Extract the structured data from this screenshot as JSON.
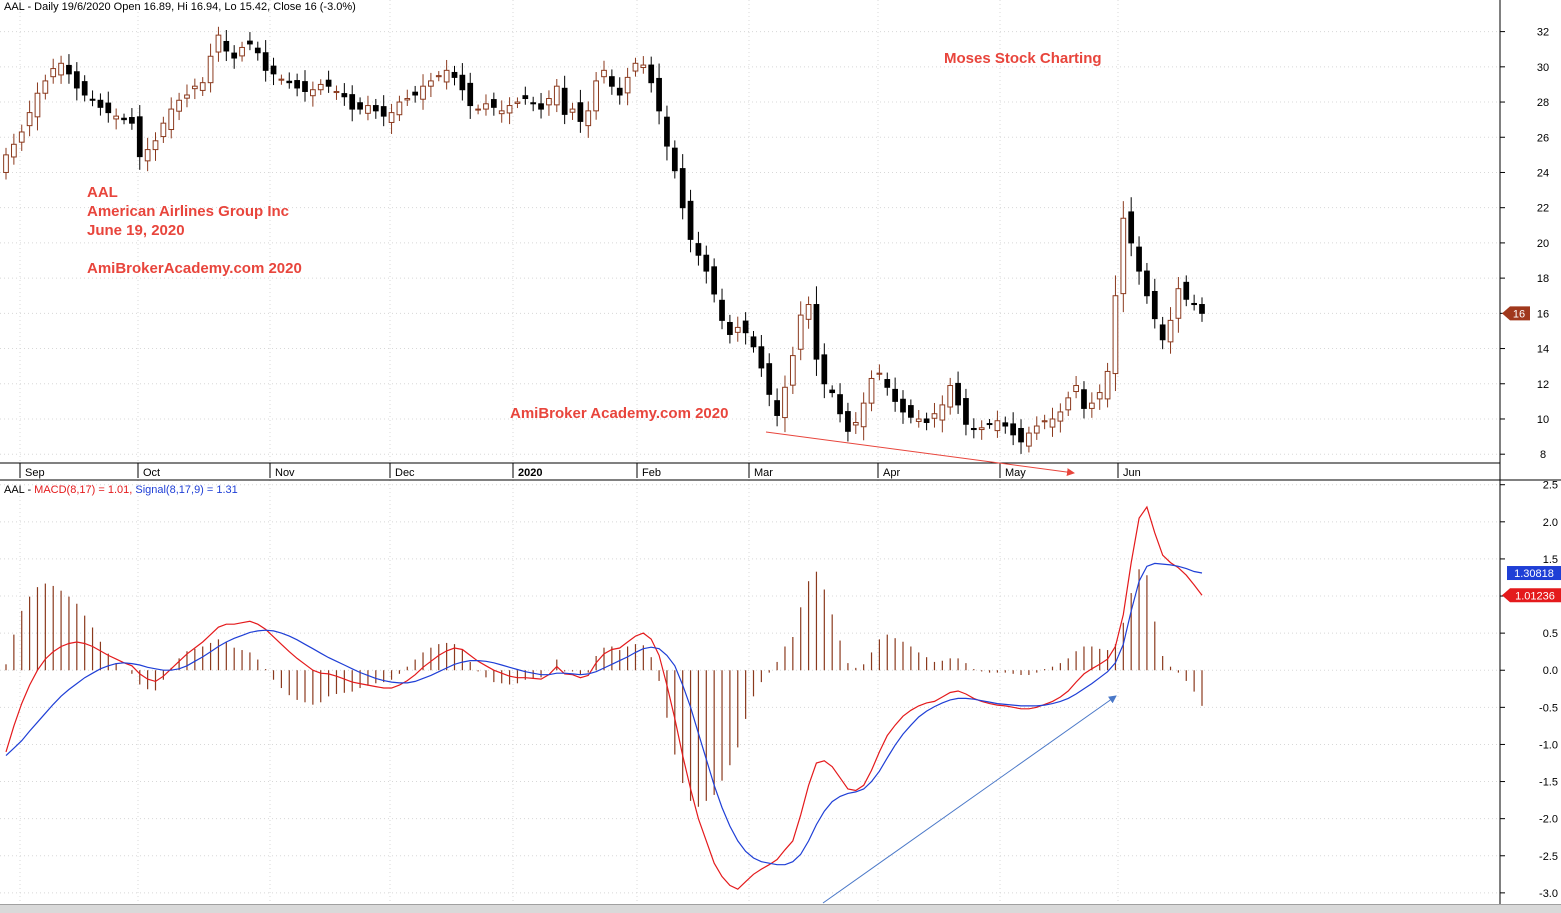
{
  "header_price": {
    "symbol": "AAL",
    "text": "AAL - Daily 19/6/2020 Open 16.89, Hi 16.94, Lo 15.42, Close 16 (-3.0%)"
  },
  "header_macd": {
    "prefix": "AAL - ",
    "macd": "MACD(8,17) = 1.01,",
    "signal": "Signal(8,17,9) = 1.31",
    "macd_color": "#e41a1c",
    "signal_color": "#1f3fd6"
  },
  "annotations": {
    "symbol": "AAL",
    "company": "American Airlines Group Inc",
    "date": "June 19, 2020",
    "site": "AmiBrokerAcademy.com  2020",
    "brand": "Moses Stock Charting",
    "watermark": "AmiBroker Academy.com  2020"
  },
  "chart_data": [
    {
      "type": "candlestick",
      "title": "AAL - Daily 19/6/2020 Open 16.89, Hi 16.94, Lo 15.42, Close 16 (-3.0%)",
      "x_tick_labels": [
        "Sep",
        "Oct",
        "Nov",
        "Dec",
        "2020",
        "Feb",
        "Mar",
        "Apr",
        "May",
        "Jun"
      ],
      "ylim": [
        7.5,
        33
      ],
      "y_ticks": [
        8,
        10,
        12,
        14,
        16,
        18,
        20,
        22,
        24,
        26,
        28,
        30,
        32
      ],
      "last_close_label": "16",
      "last_close": 16,
      "up_color": "#8b3a1e",
      "down_color": "#000000",
      "close_series": [
        25.0,
        25.6,
        26.3,
        27.4,
        28.5,
        29.2,
        29.9,
        30.2,
        29.6,
        28.8,
        28.4,
        28.1,
        27.7,
        27.4,
        27.2,
        27.0,
        26.8,
        24.9,
        25.3,
        25.8,
        26.8,
        27.6,
        28.1,
        28.4,
        28.9,
        29.1,
        30.6,
        31.8,
        30.9,
        30.5,
        31.1,
        31.3,
        30.8,
        29.8,
        29.6,
        29.3,
        29.1,
        28.8,
        28.6,
        28.7,
        29.0,
        28.9,
        28.6,
        28.3,
        27.6,
        27.6,
        27.8,
        27.5,
        27.2,
        27.4,
        28.0,
        28.2,
        28.4,
        28.9,
        29.2,
        29.5,
        29.8,
        29.4,
        28.7,
        27.8,
        27.6,
        27.9,
        27.7,
        27.5,
        27.8,
        28.0,
        28.2,
        27.9,
        27.6,
        28.2,
        28.9,
        27.3,
        27.6,
        26.9,
        27.5,
        29.2,
        29.8,
        28.9,
        28.4,
        29.4,
        30.2,
        30.1,
        29.1,
        27.5,
        25.5,
        24.1,
        22.0,
        20.2,
        19.3,
        18.4,
        17.1,
        15.6,
        14.8,
        15.2,
        14.9,
        14.1,
        12.9,
        11.4,
        10.2,
        11.8,
        13.6,
        15.9,
        16.5,
        13.4,
        12.0,
        11.5,
        10.3,
        9.3,
        9.8,
        10.9,
        12.3,
        12.6,
        11.8,
        11.0,
        10.4,
        10.1,
        10.0,
        9.8,
        10.3,
        10.8,
        11.9,
        10.8,
        9.7,
        9.4,
        9.5,
        9.7,
        9.9,
        9.6,
        9.1,
        8.7,
        9.2,
        9.6,
        9.9,
        10.0,
        10.4,
        11.2,
        11.9,
        10.6,
        10.9,
        11.5,
        12.7,
        17.0,
        21.4,
        20.0,
        18.4,
        17.0,
        15.7,
        14.5,
        15.6,
        17.4,
        16.8,
        16.5,
        16.0
      ]
    },
    {
      "type": "line",
      "title": "AAL - MACD(8,17) = 1.01, Signal(8,17,9) = 1.31",
      "ylim": [
        -3.15,
        2.55
      ],
      "y_ticks": [
        -3.0,
        -2.5,
        -2.0,
        -1.5,
        -1.0,
        -0.5,
        0.0,
        0.5,
        1.0,
        1.5,
        2.0,
        2.5
      ],
      "series": [
        {
          "name": "MACD(8,17)",
          "color": "#e41a1c",
          "last_label": "1.01236",
          "values": [
            -1.1,
            -0.75,
            -0.45,
            -0.2,
            0.0,
            0.15,
            0.25,
            0.32,
            0.36,
            0.38,
            0.36,
            0.32,
            0.26,
            0.2,
            0.15,
            0.1,
            0.06,
            -0.05,
            -0.12,
            -0.15,
            -0.08,
            0.02,
            0.12,
            0.22,
            0.3,
            0.38,
            0.48,
            0.58,
            0.62,
            0.62,
            0.64,
            0.66,
            0.62,
            0.55,
            0.45,
            0.35,
            0.25,
            0.16,
            0.08,
            0.0,
            -0.04,
            -0.05,
            -0.08,
            -0.12,
            -0.16,
            -0.18,
            -0.2,
            -0.22,
            -0.24,
            -0.24,
            -0.2,
            -0.14,
            -0.06,
            0.04,
            0.12,
            0.2,
            0.26,
            0.3,
            0.28,
            0.2,
            0.12,
            0.06,
            0.0,
            -0.04,
            -0.08,
            -0.1,
            -0.1,
            -0.11,
            -0.12,
            -0.06,
            0.05,
            -0.05,
            -0.06,
            -0.1,
            -0.07,
            0.1,
            0.22,
            0.28,
            0.3,
            0.38,
            0.46,
            0.5,
            0.42,
            0.2,
            -0.2,
            -0.65,
            -1.15,
            -1.6,
            -2.0,
            -2.3,
            -2.6,
            -2.78,
            -2.9,
            -2.95,
            -2.85,
            -2.75,
            -2.68,
            -2.62,
            -2.55,
            -2.42,
            -2.3,
            -1.95,
            -1.55,
            -1.25,
            -1.22,
            -1.3,
            -1.45,
            -1.6,
            -1.62,
            -1.55,
            -1.35,
            -1.1,
            -0.88,
            -0.74,
            -0.62,
            -0.54,
            -0.48,
            -0.44,
            -0.42,
            -0.36,
            -0.3,
            -0.28,
            -0.32,
            -0.38,
            -0.42,
            -0.45,
            -0.47,
            -0.48,
            -0.5,
            -0.52,
            -0.52,
            -0.5,
            -0.46,
            -0.42,
            -0.36,
            -0.28,
            -0.16,
            -0.05,
            0.02,
            0.08,
            0.15,
            0.32,
            0.75,
            1.45,
            2.05,
            2.2,
            1.85,
            1.55,
            1.45,
            1.38,
            1.28,
            1.15,
            1.01
          ]
        },
        {
          "name": "Signal(8,17,9)",
          "color": "#1f3fd6",
          "last_label": "1.30818",
          "values": [
            -1.15,
            -1.05,
            -0.95,
            -0.82,
            -0.7,
            -0.58,
            -0.46,
            -0.35,
            -0.26,
            -0.18,
            -0.1,
            -0.04,
            0.02,
            0.06,
            0.09,
            0.1,
            0.09,
            0.07,
            0.04,
            0.02,
            0.0,
            0.0,
            0.02,
            0.06,
            0.12,
            0.18,
            0.25,
            0.32,
            0.38,
            0.43,
            0.47,
            0.51,
            0.53,
            0.54,
            0.53,
            0.5,
            0.46,
            0.41,
            0.35,
            0.29,
            0.23,
            0.17,
            0.12,
            0.07,
            0.02,
            -0.03,
            -0.07,
            -0.11,
            -0.14,
            -0.16,
            -0.17,
            -0.17,
            -0.15,
            -0.11,
            -0.07,
            -0.02,
            0.03,
            0.08,
            0.11,
            0.13,
            0.13,
            0.12,
            0.1,
            0.07,
            0.04,
            0.01,
            -0.02,
            -0.04,
            -0.06,
            -0.06,
            -0.04,
            -0.04,
            -0.05,
            -0.06,
            -0.05,
            -0.02,
            0.03,
            0.08,
            0.13,
            0.18,
            0.24,
            0.29,
            0.31,
            0.29,
            0.2,
            0.06,
            -0.2,
            -0.5,
            -0.85,
            -1.2,
            -1.55,
            -1.85,
            -2.1,
            -2.3,
            -2.44,
            -2.53,
            -2.58,
            -2.6,
            -2.62,
            -2.62,
            -2.58,
            -2.48,
            -2.3,
            -2.08,
            -1.9,
            -1.77,
            -1.7,
            -1.66,
            -1.64,
            -1.6,
            -1.5,
            -1.36,
            -1.18,
            -1.01,
            -0.86,
            -0.74,
            -0.63,
            -0.55,
            -0.49,
            -0.44,
            -0.4,
            -0.38,
            -0.38,
            -0.39,
            -0.41,
            -0.43,
            -0.45,
            -0.46,
            -0.47,
            -0.48,
            -0.48,
            -0.48,
            -0.47,
            -0.45,
            -0.42,
            -0.38,
            -0.32,
            -0.25,
            -0.18,
            -0.1,
            -0.02,
            0.1,
            0.35,
            0.8,
            1.2,
            1.4,
            1.44,
            1.43,
            1.42,
            1.4,
            1.37,
            1.33,
            1.31
          ]
        }
      ],
      "histogram_color": "#8b3a1e"
    }
  ]
}
